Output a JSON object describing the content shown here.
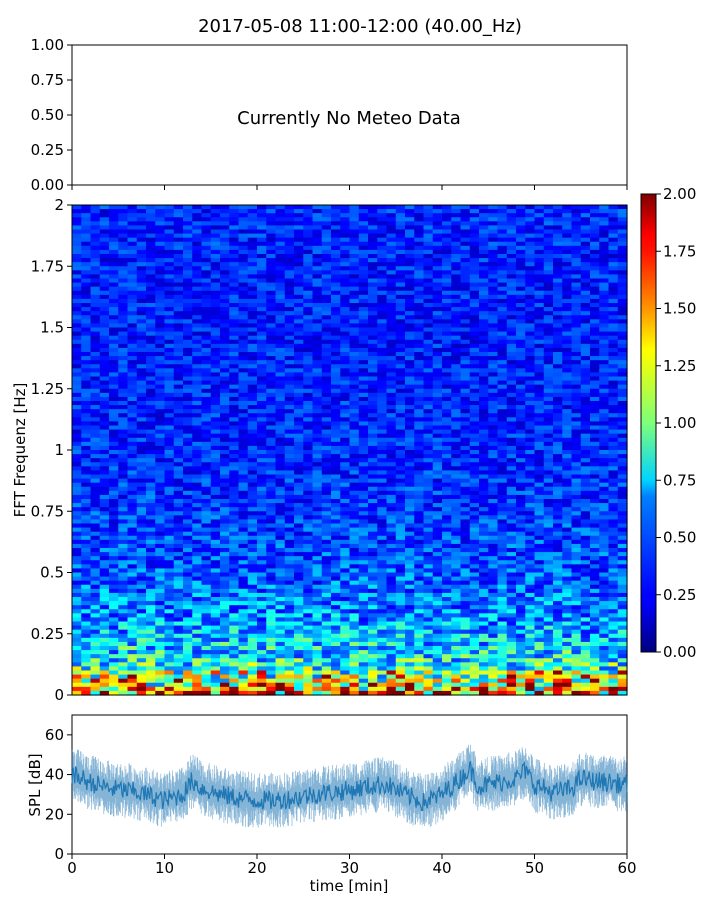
{
  "title": "2017-05-08 11:00-12:00 (40.00_Hz)",
  "chart_data": [
    {
      "type": "line",
      "panel": "meteo",
      "annotation": "Currently No Meteo Data",
      "ylim": [
        0,
        1
      ],
      "yticks": [
        "0.00",
        "0.25",
        "0.50",
        "0.75",
        "1.00"
      ],
      "xlim": [
        0,
        60
      ],
      "series": []
    },
    {
      "type": "heatmap",
      "panel": "spectrogram",
      "ylabel": "FFT Frequenz [Hz]",
      "xlim": [
        0,
        60
      ],
      "ylim": [
        0,
        2
      ],
      "yticks": [
        "0",
        "0.25",
        "0.5",
        "0.75",
        "1",
        "1.25",
        "1.5",
        "1.75",
        "2"
      ],
      "colormap": "jet",
      "colorbar": {
        "range": [
          0,
          2
        ],
        "ticks": [
          "0.00",
          "0.25",
          "0.50",
          "0.75",
          "1.00",
          "1.25",
          "1.50",
          "1.75",
          "2.00"
        ]
      },
      "value_profile_by_frequency": [
        {
          "freq_hz": 0.0,
          "typical_value": 1.6
        },
        {
          "freq_hz": 0.05,
          "typical_value": 1.0
        },
        {
          "freq_hz": 0.15,
          "typical_value": 0.75
        },
        {
          "freq_hz": 0.3,
          "typical_value": 0.55
        },
        {
          "freq_hz": 0.5,
          "typical_value": 0.42
        },
        {
          "freq_hz": 0.75,
          "typical_value": 0.36
        },
        {
          "freq_hz": 1.0,
          "typical_value": 0.32
        },
        {
          "freq_hz": 1.5,
          "typical_value": 0.3
        },
        {
          "freq_hz": 2.0,
          "typical_value": 0.32
        }
      ]
    },
    {
      "type": "line",
      "panel": "spl",
      "xlabel": "time [min]",
      "ylabel": "SPL [dB]",
      "xlim": [
        0,
        60
      ],
      "ylim": [
        0,
        70
      ],
      "xticks": [
        "0",
        "10",
        "20",
        "30",
        "40",
        "50",
        "60"
      ],
      "yticks": [
        "0",
        "20",
        "40",
        "60"
      ],
      "color": "#1f77b4",
      "x": [
        0,
        2,
        4,
        6,
        8,
        10,
        12,
        13,
        14,
        16,
        18,
        20,
        22,
        24,
        26,
        28,
        30,
        32,
        34,
        36,
        38,
        40,
        42,
        43,
        44,
        46,
        48,
        49,
        50,
        52,
        54,
        55,
        56,
        58,
        60
      ],
      "y": [
        40,
        36,
        33,
        32,
        30,
        27,
        30,
        37,
        33,
        30,
        28,
        27,
        27,
        28,
        30,
        31,
        32,
        34,
        35,
        30,
        26,
        30,
        38,
        43,
        34,
        36,
        38,
        42,
        35,
        31,
        33,
        38,
        37,
        36,
        35
      ]
    }
  ]
}
